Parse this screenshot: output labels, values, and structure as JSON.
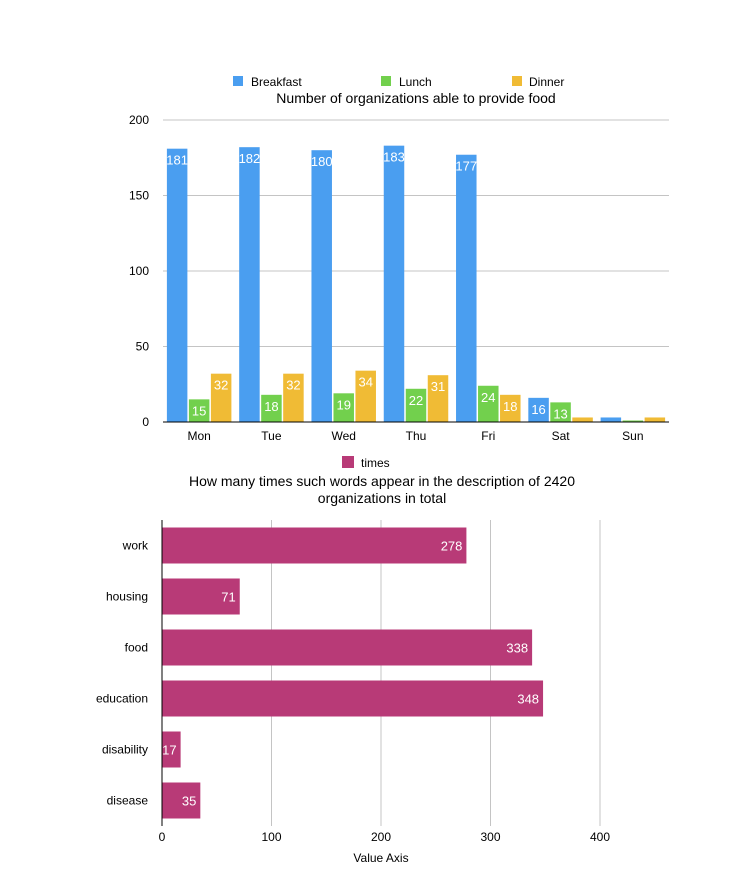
{
  "chart_data": [
    {
      "type": "bar",
      "title": "Number of organizations able to provide food",
      "categories": [
        "Mon",
        "Tue",
        "Wed",
        "Thu",
        "Fri",
        "Sat",
        "Sun"
      ],
      "series": [
        {
          "name": "Breakfast",
          "color": "#4a9ef0",
          "values": [
            181,
            182,
            180,
            183,
            177,
            16,
            3
          ],
          "data_labels": [
            "181",
            "182",
            "180",
            "183",
            "177",
            "16",
            ""
          ]
        },
        {
          "name": "Lunch",
          "color": "#72d04d",
          "values": [
            15,
            18,
            19,
            22,
            24,
            13,
            1
          ],
          "data_labels": [
            "15",
            "18",
            "19",
            "22",
            "24",
            "13",
            ""
          ]
        },
        {
          "name": "Dinner",
          "color": "#f0bb35",
          "values": [
            32,
            32,
            34,
            31,
            18,
            3,
            3
          ],
          "data_labels": [
            "32",
            "32",
            "34",
            "31",
            "18",
            "",
            ""
          ]
        }
      ],
      "ylim": [
        0,
        200
      ],
      "yticks": [
        0,
        50,
        100,
        150,
        200
      ],
      "grid": true,
      "legend": "top"
    },
    {
      "type": "bar",
      "orientation": "horizontal",
      "title": "How many times such words appear in the description of 2420 organizations in total",
      "title_lines": [
        "How many times such words appear in the description of 2420",
        "organizations in total"
      ],
      "categories": [
        "work",
        "housing",
        "food",
        "education",
        "disability",
        "disease"
      ],
      "series": [
        {
          "name": "times",
          "color": "#b83a77",
          "values": [
            278,
            71,
            338,
            348,
            17,
            35
          ],
          "data_labels": [
            "278",
            "71",
            "338",
            "348",
            "17",
            "35"
          ]
        }
      ],
      "xlabel": "Value Axis",
      "xlim": [
        0,
        400
      ],
      "xticks": [
        0,
        100,
        200,
        300,
        400
      ],
      "grid": true,
      "legend": "top"
    }
  ]
}
